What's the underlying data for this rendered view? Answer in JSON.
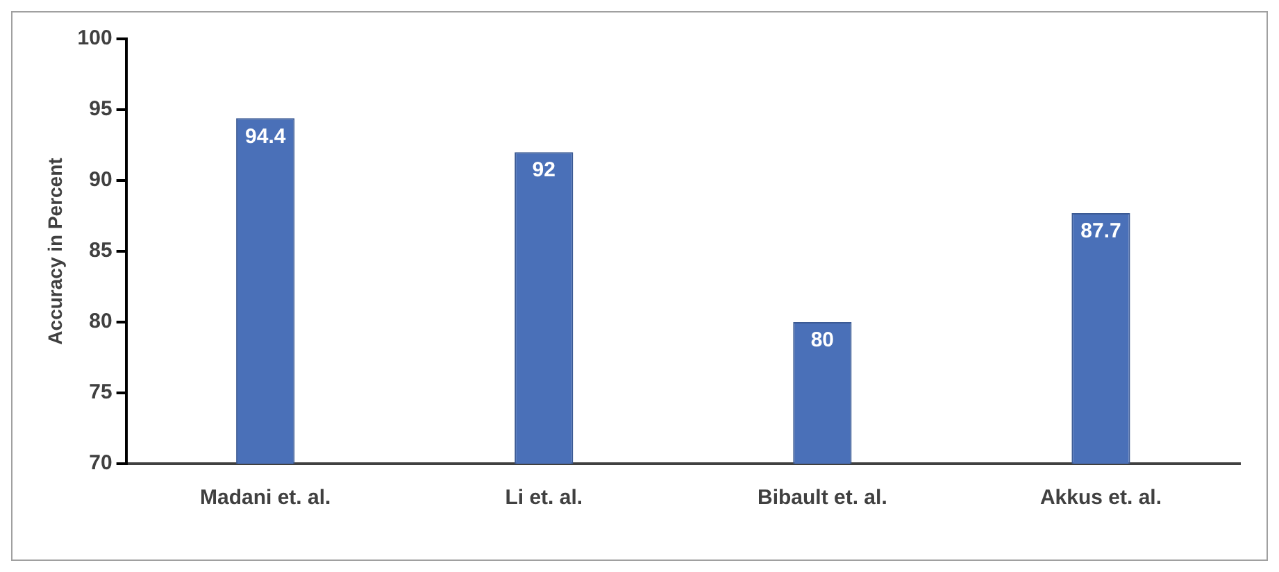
{
  "chart_data": {
    "type": "bar",
    "ylabel": "Accuracy in Percent",
    "categories": [
      "Madani et. al.",
      "Li et. al.",
      "Bibault et. al.",
      "Akkus et. al."
    ],
    "values": [
      94.4,
      92,
      80,
      87.7
    ],
    "color": "#4a70b8",
    "ylim": [
      70,
      100
    ],
    "yticks": [
      70,
      75,
      80,
      85,
      90,
      95,
      100
    ],
    "grid": false,
    "legend": false,
    "data_labels": true
  }
}
